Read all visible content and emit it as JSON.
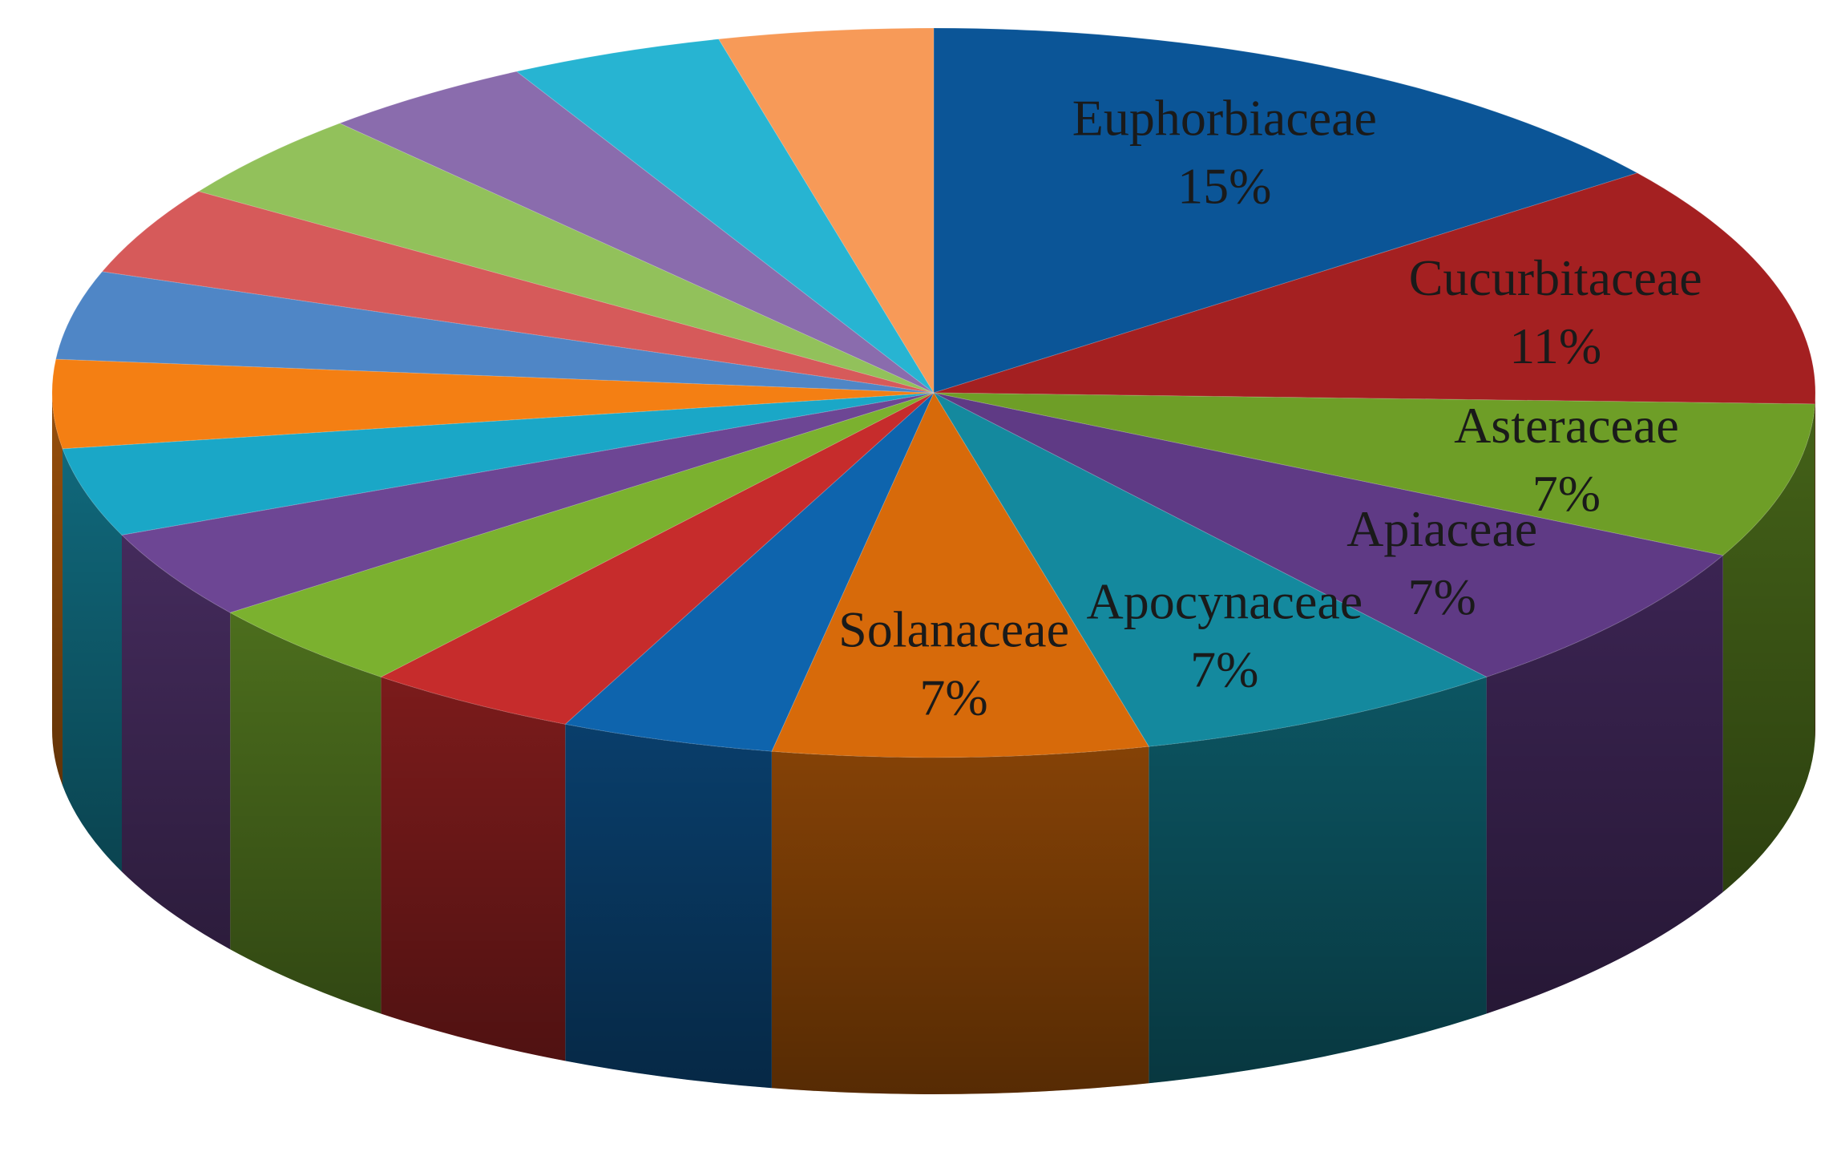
{
  "chart_data": {
    "type": "pie",
    "title": "",
    "style": "3d",
    "start_angle_deg": 0,
    "direction": "clockwise",
    "slices": [
      {
        "label": "Euphorbiaceae",
        "percent_label": "15%",
        "value": 15,
        "color": "#0b5597"
      },
      {
        "label": "Cucurbitaceae",
        "percent_label": "11%",
        "value": 11,
        "color": "#a42021"
      },
      {
        "label": "Asteraceae",
        "percent_label": "7%",
        "value": 7,
        "color": "#6e9e27"
      },
      {
        "label": "Apiaceae",
        "percent_label": "7%",
        "value": 7,
        "color": "#5f3a85"
      },
      {
        "label": "Apocynaceae",
        "percent_label": "7%",
        "value": 7,
        "color": "#14899e"
      },
      {
        "label": "Solanaceae",
        "percent_label": "7%",
        "value": 7,
        "color": "#d76a0a"
      },
      {
        "label": "",
        "percent_label": "",
        "value": 4,
        "color": "#0e64ad"
      },
      {
        "label": "",
        "percent_label": "",
        "value": 4,
        "color": "#c62c2c"
      },
      {
        "label": "",
        "percent_label": "",
        "value": 4,
        "color": "#7bb12f"
      },
      {
        "label": "",
        "percent_label": "",
        "value": 4,
        "color": "#6d4694"
      },
      {
        "label": "",
        "percent_label": "",
        "value": 4,
        "color": "#1aa7c7"
      },
      {
        "label": "",
        "percent_label": "",
        "value": 4,
        "color": "#f47f13"
      },
      {
        "label": "",
        "percent_label": "",
        "value": 4,
        "color": "#4f86c6"
      },
      {
        "label": "",
        "percent_label": "",
        "value": 4,
        "color": "#d65a5a"
      },
      {
        "label": "",
        "percent_label": "",
        "value": 4,
        "color": "#92c15b"
      },
      {
        "label": "",
        "percent_label": "",
        "value": 4,
        "color": "#8a6cad"
      },
      {
        "label": "",
        "percent_label": "",
        "value": 4,
        "color": "#27b4d2"
      },
      {
        "label": "",
        "percent_label": "",
        "value": 4,
        "color": "#f79a58"
      }
    ]
  }
}
